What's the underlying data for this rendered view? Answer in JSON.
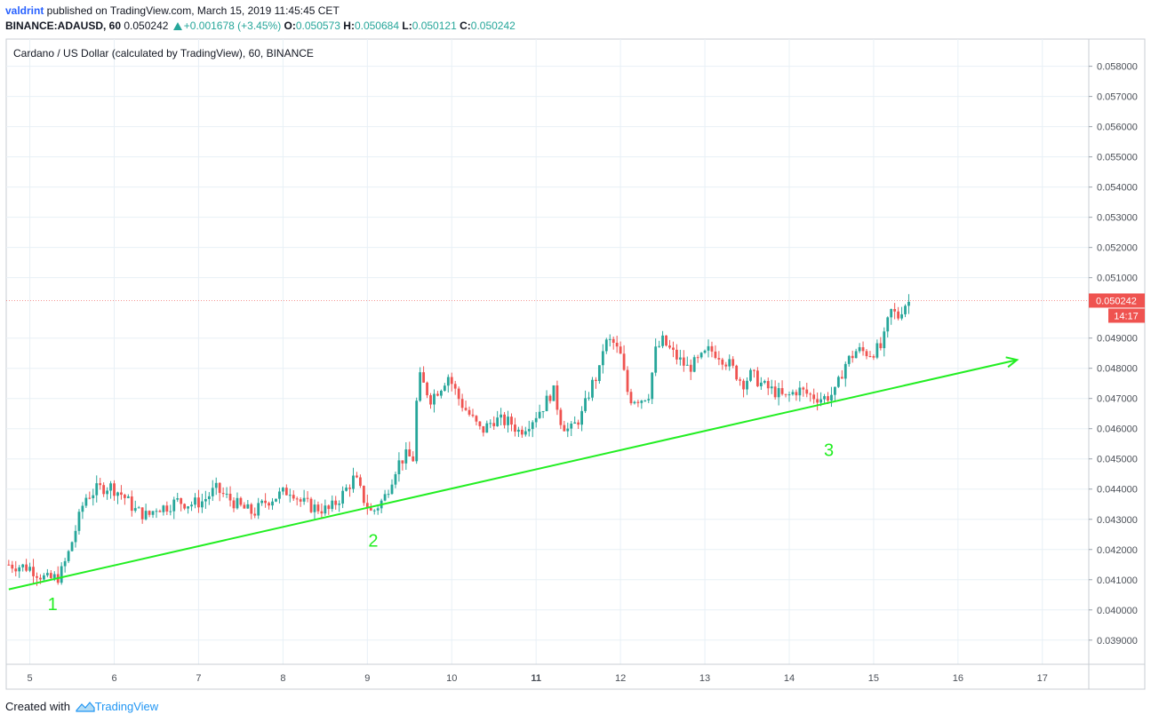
{
  "header": {
    "author": "valdrint",
    "published_text": " published on TradingView.com, March 15, 2019 11:45:45 CET",
    "symbol": "BINANCE:ADAUSD, 60",
    "last": "0.050242",
    "change": "+0.001678 (+3.45%)",
    "o_label": "O:",
    "o_value": "0.050573",
    "h_label": "H:",
    "h_value": "0.050684",
    "l_label": "L:",
    "l_value": "0.050121",
    "c_label": "C:",
    "c_value": "0.050242"
  },
  "chart_title": "Cardano / US Dollar (calculated by TradingView), 60, BINANCE",
  "footer": {
    "created_with": "Created with",
    "brand": "TradingView"
  },
  "colors": {
    "up": "#26a69a",
    "down": "#ef5350",
    "trendline": "#22ee22",
    "grid": "#e8f0f6",
    "price_tag": "#ef5350",
    "author": "#2962ff"
  },
  "chart_data": {
    "type": "candlestick",
    "title": "Cardano / US Dollar (calculated by TradingView), 60, BINANCE",
    "x_ticks": [
      "5",
      "6",
      "7",
      "8",
      "9",
      "10",
      "11",
      "12",
      "13",
      "14",
      "15",
      "16",
      "17"
    ],
    "x_range": [
      4.72,
      17.55
    ],
    "y_ticks": [
      "0.058000",
      "0.057000",
      "0.056000",
      "0.055000",
      "0.054000",
      "0.053000",
      "0.052000",
      "0.051000",
      "0.049000",
      "0.048000",
      "0.047000",
      "0.046000",
      "0.045000",
      "0.044000",
      "0.043000",
      "0.042000",
      "0.041000",
      "0.040000",
      "0.039000"
    ],
    "y_range": [
      0.0382,
      0.0589
    ],
    "last_price_label": "0.050242",
    "countdown_label": "14:17",
    "last_price": 0.050242,
    "trend_points": [
      [
        4.75,
        0.04068
      ],
      [
        9.0,
        0.04336
      ],
      [
        14.5,
        0.04688
      ]
    ],
    "close_path": [
      [
        4.75,
        0.0415
      ],
      [
        5.0,
        0.0414
      ],
      [
        5.2,
        0.041
      ],
      [
        5.35,
        0.0411
      ],
      [
        5.45,
        0.0418
      ],
      [
        5.6,
        0.0432
      ],
      [
        5.65,
        0.0437
      ],
      [
        5.8,
        0.044
      ],
      [
        5.95,
        0.0441
      ],
      [
        6.1,
        0.0438
      ],
      [
        6.25,
        0.0433
      ],
      [
        6.4,
        0.0431
      ],
      [
        6.5,
        0.0434
      ],
      [
        6.6,
        0.0434
      ],
      [
        6.75,
        0.0436
      ],
      [
        6.9,
        0.0435
      ],
      [
        7.05,
        0.0436
      ],
      [
        7.2,
        0.044
      ],
      [
        7.35,
        0.0437
      ],
      [
        7.5,
        0.0434
      ],
      [
        7.65,
        0.0432
      ],
      [
        7.8,
        0.0436
      ],
      [
        7.95,
        0.0438
      ],
      [
        8.1,
        0.044
      ],
      [
        8.2,
        0.0436
      ],
      [
        8.35,
        0.0434
      ],
      [
        8.55,
        0.0433
      ],
      [
        8.7,
        0.0438
      ],
      [
        8.85,
        0.0444
      ],
      [
        8.95,
        0.0437
      ],
      [
        9.05,
        0.0432
      ],
      [
        9.2,
        0.0437
      ],
      [
        9.35,
        0.0448
      ],
      [
        9.45,
        0.0451
      ],
      [
        9.55,
        0.045
      ],
      [
        9.6,
        0.0478
      ],
      [
        9.75,
        0.047
      ],
      [
        9.9,
        0.0475
      ],
      [
        9.95,
        0.0478
      ],
      [
        10.1,
        0.0469
      ],
      [
        10.2,
        0.0465
      ],
      [
        10.35,
        0.0459
      ],
      [
        10.5,
        0.0463
      ],
      [
        10.7,
        0.0462
      ],
      [
        10.8,
        0.0459
      ],
      [
        10.95,
        0.0463
      ],
      [
        11.1,
        0.0468
      ],
      [
        11.2,
        0.0473
      ],
      [
        11.3,
        0.0462
      ],
      [
        11.4,
        0.0459
      ],
      [
        11.55,
        0.0465
      ],
      [
        11.65,
        0.0474
      ],
      [
        11.75,
        0.0479
      ],
      [
        11.8,
        0.0488
      ],
      [
        11.9,
        0.0489
      ],
      [
        12.0,
        0.0484
      ],
      [
        12.1,
        0.047
      ],
      [
        12.25,
        0.047
      ],
      [
        12.35,
        0.0472
      ],
      [
        12.4,
        0.0485
      ],
      [
        12.5,
        0.0489
      ],
      [
        12.65,
        0.0484
      ],
      [
        12.8,
        0.048
      ],
      [
        12.95,
        0.0483
      ],
      [
        13.05,
        0.0486
      ],
      [
        13.15,
        0.0485
      ],
      [
        13.3,
        0.0481
      ],
      [
        13.45,
        0.0475
      ],
      [
        13.55,
        0.0478
      ],
      [
        13.7,
        0.0474
      ],
      [
        13.85,
        0.0472
      ],
      [
        13.95,
        0.047
      ],
      [
        14.1,
        0.0473
      ],
      [
        14.25,
        0.0471
      ],
      [
        14.4,
        0.047
      ],
      [
        14.55,
        0.0472
      ],
      [
        14.65,
        0.0481
      ],
      [
        14.8,
        0.0486
      ],
      [
        14.95,
        0.0485
      ],
      [
        15.1,
        0.0487
      ],
      [
        15.2,
        0.0499
      ],
      [
        15.3,
        0.0497
      ],
      [
        15.35,
        0.0501
      ],
      [
        15.45,
        0.050242
      ]
    ],
    "annotations": [
      {
        "text": "1",
        "x": 5.27,
        "y": 0.04
      },
      {
        "text": "2",
        "x": 9.07,
        "y": 0.0421
      },
      {
        "text": "3",
        "x": 14.47,
        "y": 0.0451
      }
    ]
  }
}
